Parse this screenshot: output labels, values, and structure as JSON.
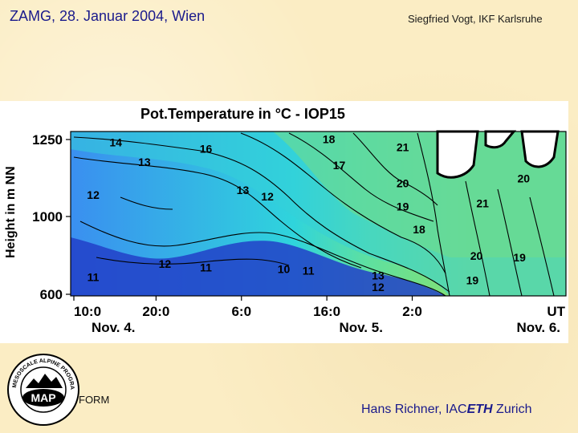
{
  "header": {
    "left_title": "ZAMG, 28. Januar 2004, Wien",
    "right_author": "Siegfried Vogt, IKF Karlsruhe"
  },
  "logo": {
    "ring_text": "MESOSCALE ALPINE PROGRAMME",
    "center_text": "MAP",
    "icon": "map-programme-logo"
  },
  "form_label": "FORM",
  "footer": {
    "credit_prefix": "Hans Richner, IAC",
    "credit_eth": "ETH",
    "credit_suffix": " Zurich"
  },
  "chart_data": {
    "type": "heatmap",
    "title": "Pot.Temperature in °C   -  IOP15",
    "ylabel": "Height in m  NN",
    "xlabel": "",
    "y_ticks": [
      1250,
      1000,
      600
    ],
    "x_ticks": [
      "10:0",
      "20:0",
      "6:0",
      "16:0",
      "2:0"
    ],
    "x_unit": "UT",
    "date_labels": [
      "Nov. 4.",
      "Nov. 5.",
      "Nov. 6."
    ],
    "contour_labels": [
      {
        "value": "14",
        "t": 0.22,
        "h": 0.91
      },
      {
        "value": "13",
        "t": 0.36,
        "h": 0.79
      },
      {
        "value": "12",
        "t": 0.11,
        "h": 0.59
      },
      {
        "value": "16",
        "t": 0.66,
        "h": 0.87
      },
      {
        "value": "13",
        "t": 0.84,
        "h": 0.62
      },
      {
        "value": "12",
        "t": 0.96,
        "h": 0.58
      },
      {
        "value": "18",
        "t": 1.26,
        "h": 0.93
      },
      {
        "value": "17",
        "t": 1.31,
        "h": 0.77
      },
      {
        "value": "21",
        "t": 1.62,
        "h": 0.88
      },
      {
        "value": "20",
        "t": 1.62,
        "h": 0.66
      },
      {
        "value": "19",
        "t": 1.62,
        "h": 0.52
      },
      {
        "value": "18",
        "t": 1.7,
        "h": 0.38
      },
      {
        "value": "21",
        "t": 2.01,
        "h": 0.54
      },
      {
        "value": "20",
        "t": 2.21,
        "h": 0.69
      },
      {
        "value": "20",
        "t": 1.98,
        "h": 0.22
      },
      {
        "value": "19",
        "t": 2.19,
        "h": 0.21
      },
      {
        "value": "19",
        "t": 1.96,
        "h": 0.07
      },
      {
        "value": "12",
        "t": 0.46,
        "h": 0.17
      },
      {
        "value": "11",
        "t": 0.66,
        "h": 0.15
      },
      {
        "value": "10",
        "t": 1.04,
        "h": 0.14
      },
      {
        "value": "11",
        "t": 1.16,
        "h": 0.13
      },
      {
        "value": "13",
        "t": 1.5,
        "h": 0.1
      },
      {
        "value": "12",
        "t": 1.5,
        "h": 0.03
      },
      {
        "value": "11",
        "t": 0.11,
        "h": 0.09
      }
    ],
    "colors": {
      "cold": "#1c3fbf",
      "cool": "#3a8ff0",
      "mid": "#2fd4dc",
      "warm": "#5ee0a0",
      "hot": "#86e070",
      "ink": "#000000",
      "outage": "#ffffff"
    }
  }
}
